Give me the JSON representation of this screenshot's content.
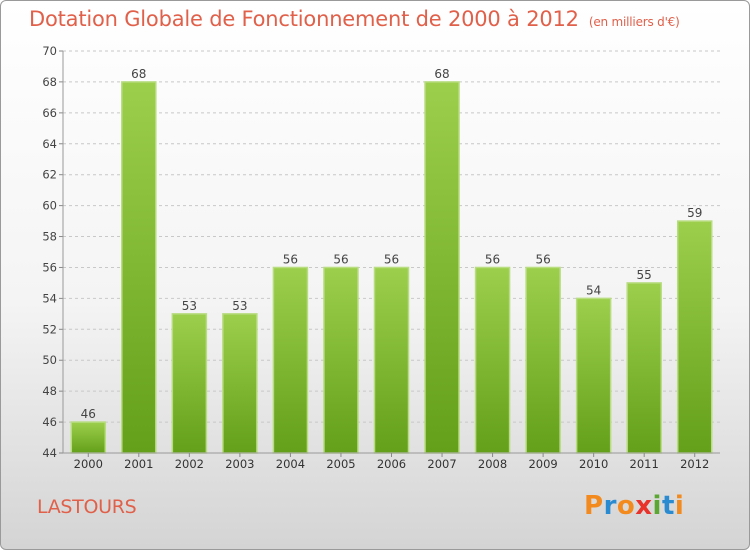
{
  "chart_data": {
    "type": "bar",
    "title": "Dotation Globale de Fonctionnement de 2000 à 2012",
    "subtitle": "(en milliers d'€)",
    "categories": [
      "2000",
      "2001",
      "2002",
      "2003",
      "2004",
      "2005",
      "2006",
      "2007",
      "2008",
      "2009",
      "2010",
      "2011",
      "2012"
    ],
    "values": [
      46,
      68,
      53,
      53,
      56,
      56,
      56,
      68,
      56,
      56,
      54,
      55,
      59
    ],
    "ylim": [
      44,
      70
    ],
    "yticks": [
      44,
      46,
      48,
      50,
      52,
      54,
      56,
      58,
      60,
      62,
      64,
      66,
      68,
      70
    ],
    "grid": "horizontal-dashed",
    "legend": "none",
    "bar_color": "#8cc43c"
  },
  "footer": {
    "place": "LASTOURS",
    "logo": {
      "letters": [
        "P",
        "r",
        "o",
        "x",
        "i",
        "t",
        "i"
      ],
      "colors": [
        "#f28a1e",
        "#2a8bd0",
        "#f28a1e",
        "#e8322a",
        "#5aa832",
        "#2a8bd0",
        "#f28a1e"
      ]
    }
  }
}
